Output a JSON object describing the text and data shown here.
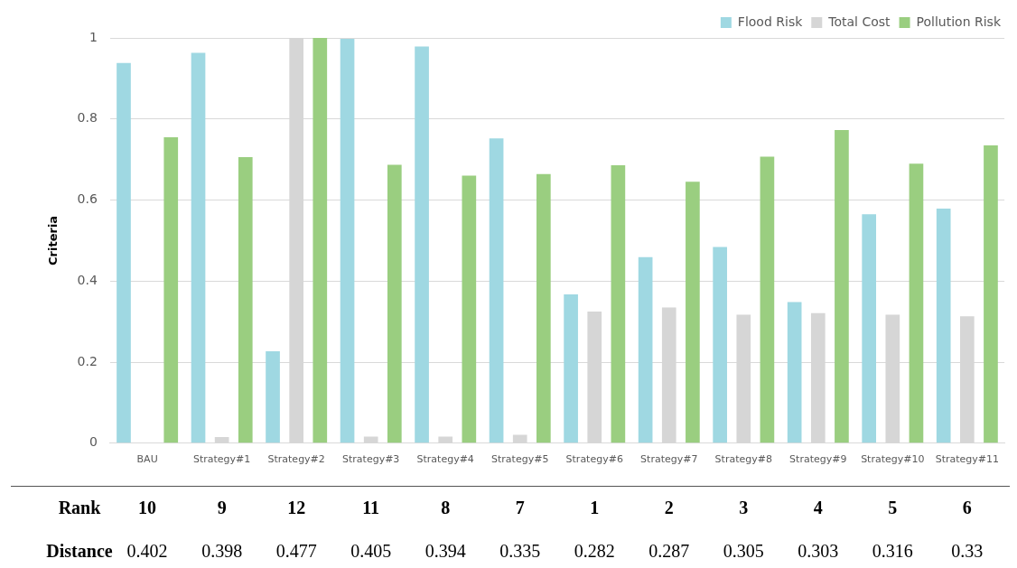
{
  "chart_data": {
    "type": "bar",
    "ylabel": "Criteria",
    "categories": [
      "BAU",
      "Strategy#1",
      "Strategy#2",
      "Strategy#3",
      "Strategy#4",
      "Strategy#5",
      "Strategy#6",
      "Strategy#7",
      "Strategy#8",
      "Strategy#9",
      "Strategy#10",
      "Strategy#11"
    ],
    "series": [
      {
        "name": "Flood Risk",
        "color": "#9fd8e2",
        "values": [
          0.938,
          0.963,
          0.227,
          0.998,
          0.979,
          0.752,
          0.367,
          0.459,
          0.484,
          0.348,
          0.565,
          0.579
        ]
      },
      {
        "name": "Total Cost",
        "color": "#d6d6d6",
        "values": [
          0,
          0.015,
          1.0,
          0.016,
          0.016,
          0.021,
          0.325,
          0.335,
          0.317,
          0.321,
          0.317,
          0.313
        ]
      },
      {
        "name": "Pollution Risk",
        "color": "#9ace80",
        "values": [
          0.755,
          0.706,
          1.0,
          0.687,
          0.66,
          0.664,
          0.686,
          0.645,
          0.707,
          0.773,
          0.69,
          0.735
        ]
      }
    ],
    "ylim": [
      0,
      1
    ],
    "yticks": [
      0,
      0.2,
      0.4,
      0.6,
      0.8,
      1
    ],
    "grid": "y",
    "legend": "top right",
    "annotations": [
      "Rank",
      "10",
      "9",
      "12",
      "11",
      "8",
      "7",
      "1",
      "2",
      "3",
      "4",
      "5",
      "6",
      "Distance",
      "0.402",
      "0.398",
      "0.477",
      "0.405",
      "0.394",
      "0.335",
      "0.282",
      "0.287",
      "0.305",
      "0.303",
      "0.316",
      "0.33"
    ]
  }
}
